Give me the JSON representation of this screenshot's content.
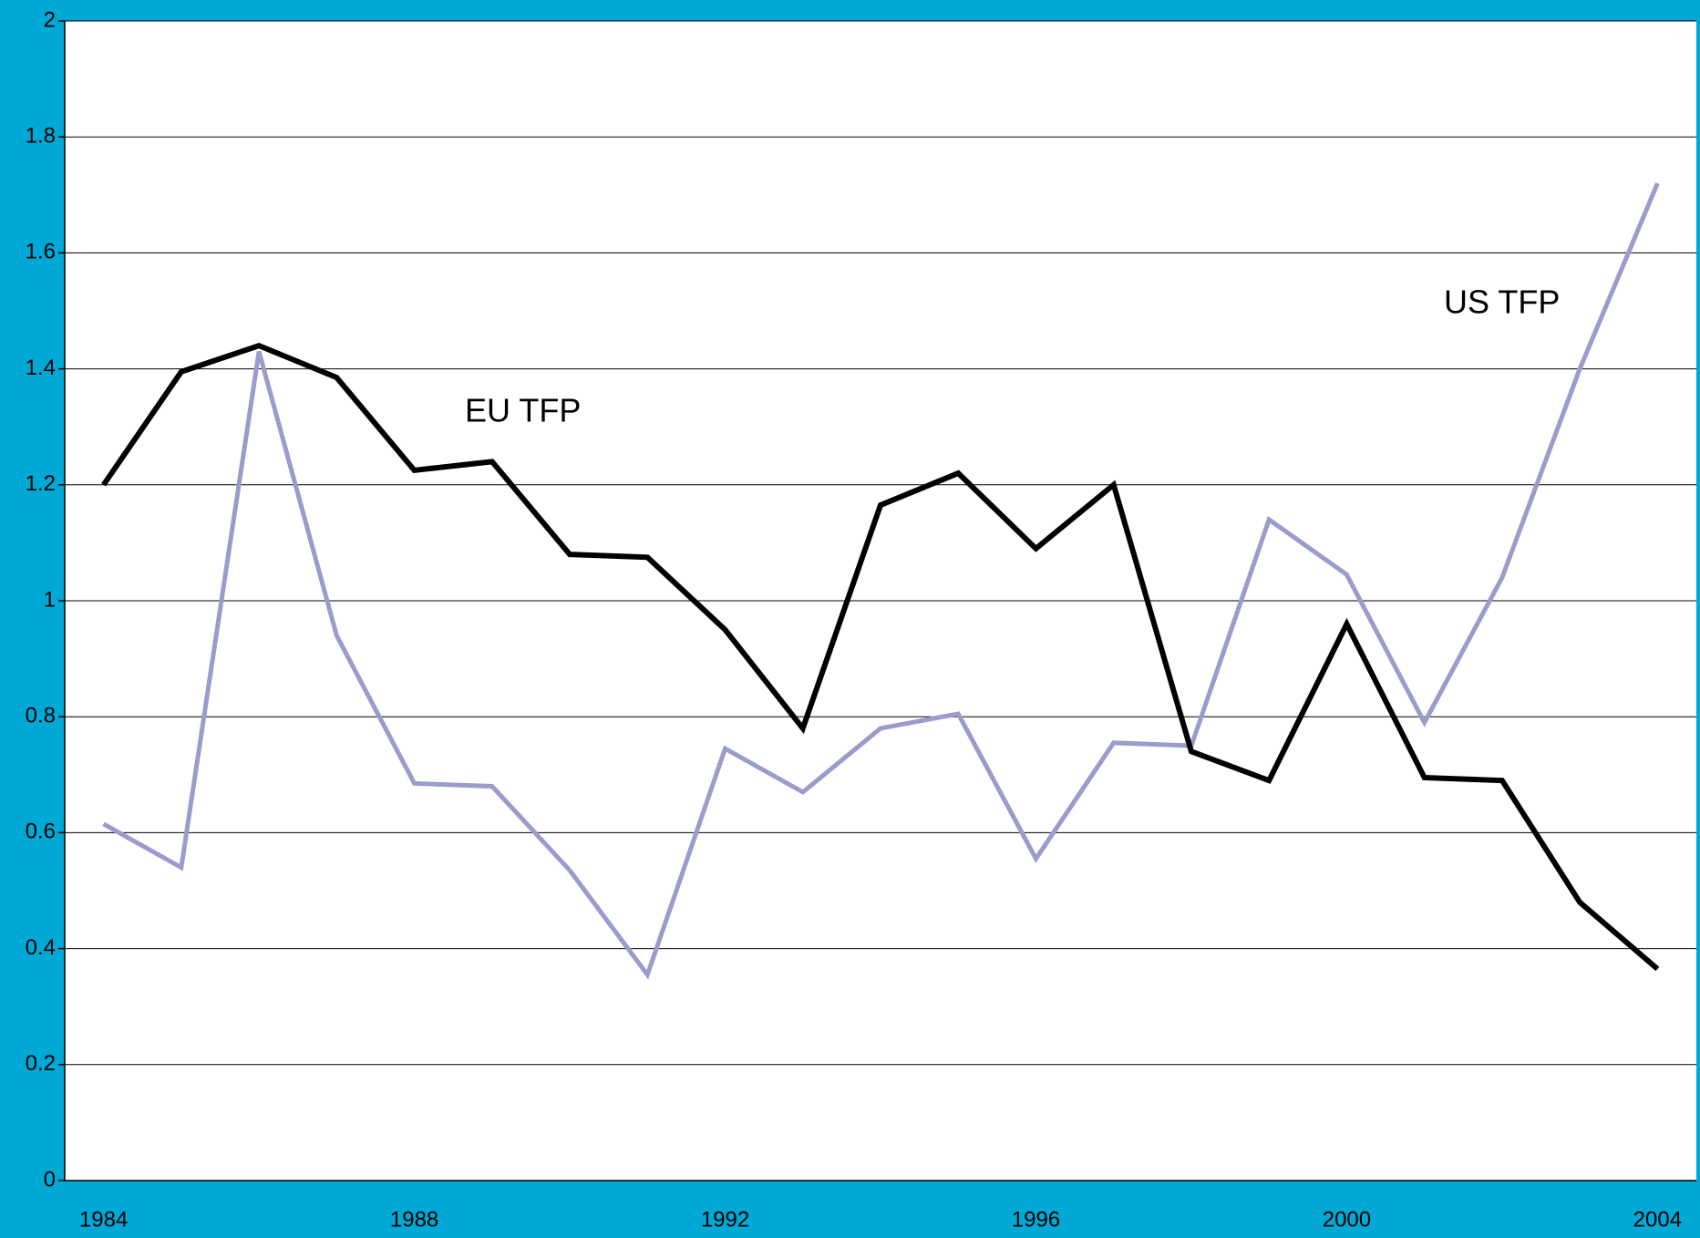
{
  "chart_data": {
    "type": "line",
    "x": [
      1984,
      1985,
      1986,
      1987,
      1988,
      1989,
      1990,
      1991,
      1992,
      1993,
      1994,
      1995,
      1996,
      1997,
      1998,
      1999,
      2000,
      2001,
      2002,
      2003,
      2004
    ],
    "xlim": [
      1983.5,
      2004.5
    ],
    "xticks": [
      1984,
      1988,
      1992,
      1996,
      2000,
      2004
    ],
    "ylim": [
      0,
      2
    ],
    "yticks": [
      0,
      0.2,
      0.4,
      0.6,
      0.8,
      1,
      1.2,
      1.4,
      1.6,
      1.8,
      2
    ],
    "grid": true,
    "series": [
      {
        "name": "EU TFP",
        "color": "#000000",
        "values": [
          1.2,
          1.395,
          1.44,
          1.385,
          1.225,
          1.24,
          1.08,
          1.075,
          0.95,
          0.78,
          1.165,
          1.22,
          1.09,
          1.2,
          0.74,
          0.69,
          0.96,
          0.695,
          0.69,
          0.48,
          0.365
        ]
      },
      {
        "name": "US TFP",
        "color": "#9a9ccc",
        "values": [
          0.615,
          0.54,
          1.43,
          0.94,
          0.685,
          0.68,
          0.535,
          0.355,
          0.745,
          0.67,
          0.78,
          0.805,
          0.555,
          0.755,
          0.75,
          1.14,
          1.045,
          0.79,
          1.04,
          1.4,
          1.72
        ]
      }
    ]
  }
}
